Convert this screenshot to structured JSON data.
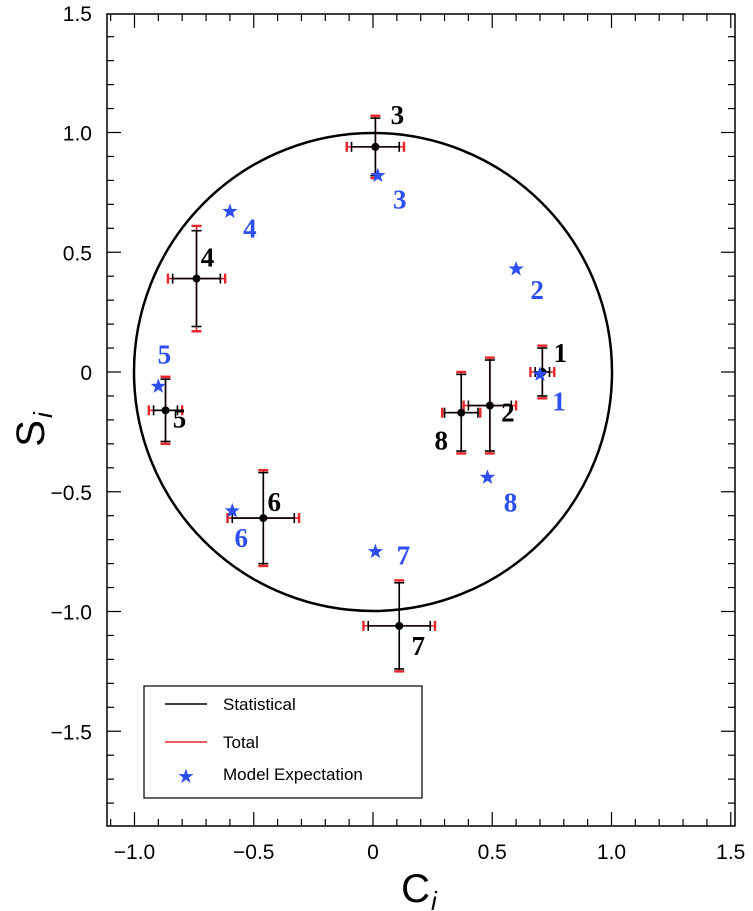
{
  "chart_data": {
    "type": "scatter",
    "xlabel": "C",
    "xlabel_sub": "i",
    "ylabel": "S",
    "ylabel_sub": "i",
    "xlim": [
      -1.1,
      1.55
    ],
    "ylim": [
      -1.9,
      1.5
    ],
    "x_ticks": [
      -1.0,
      -0.5,
      0,
      0.5,
      1.0,
      1.5
    ],
    "x_tick_labels": [
      "−1.0",
      "−0.5",
      "0",
      "0.5",
      "1.0",
      "1.5"
    ],
    "y_ticks": [
      -1.5,
      -1.0,
      -0.5,
      0,
      0.5,
      1.0,
      1.5
    ],
    "y_tick_labels": [
      "−1.5",
      "−1.0",
      "−0.5",
      "0",
      "0.5",
      "1.0",
      "1.5"
    ],
    "unit_circle": true,
    "grid": false,
    "legend": {
      "position": "bottom-left",
      "entries": [
        {
          "label": "Statistical",
          "color": "#000000",
          "marker": "line"
        },
        {
          "label": "Total",
          "color": "#e8262a",
          "marker": "line"
        },
        {
          "label": "Model Expectation",
          "color": "#2d4ef0",
          "marker": "star"
        }
      ]
    },
    "measurements": [
      {
        "label": "1",
        "c": 0.71,
        "s": 0.0,
        "c_stat": 0.03,
        "c_tot": 0.05,
        "s_stat": 0.1,
        "s_tot": 0.11
      },
      {
        "label": "2",
        "c": 0.49,
        "s": -0.14,
        "c_stat": 0.09,
        "c_tot": 0.11,
        "s_stat": 0.19,
        "s_tot": 0.2
      },
      {
        "label": "3",
        "c": 0.01,
        "s": 0.94,
        "c_stat": 0.1,
        "c_tot": 0.12,
        "s_stat": 0.12,
        "s_tot": 0.13
      },
      {
        "label": "4",
        "c": -0.74,
        "s": 0.39,
        "c_stat": 0.1,
        "c_tot": 0.12,
        "s_stat": 0.2,
        "s_tot": 0.22
      },
      {
        "label": "5",
        "c": -0.87,
        "s": -0.16,
        "c_stat": 0.05,
        "c_tot": 0.07,
        "s_stat": 0.13,
        "s_tot": 0.14
      },
      {
        "label": "6",
        "c": -0.46,
        "s": -0.61,
        "c_stat": 0.13,
        "c_tot": 0.15,
        "s_stat": 0.19,
        "s_tot": 0.2
      },
      {
        "label": "7",
        "c": 0.11,
        "s": -1.06,
        "c_stat": 0.13,
        "c_tot": 0.15,
        "s_stat": 0.18,
        "s_tot": 0.19
      },
      {
        "label": "8",
        "c": 0.37,
        "s": -0.17,
        "c_stat": 0.07,
        "c_tot": 0.08,
        "s_stat": 0.16,
        "s_tot": 0.17
      }
    ],
    "model_expectation": [
      {
        "label": "1",
        "c": 0.7,
        "s": -0.01
      },
      {
        "label": "2",
        "c": 0.6,
        "s": 0.43
      },
      {
        "label": "3",
        "c": 0.02,
        "s": 0.82
      },
      {
        "label": "4",
        "c": -0.6,
        "s": 0.67
      },
      {
        "label": "5",
        "c": -0.9,
        "s": -0.06
      },
      {
        "label": "6",
        "c": -0.59,
        "s": -0.58
      },
      {
        "label": "7",
        "c": 0.01,
        "s": -0.75
      },
      {
        "label": "8",
        "c": 0.48,
        "s": -0.44
      }
    ]
  },
  "colors": {
    "statistical": "#000000",
    "total": "#e8262a",
    "model": "#2d4ef0"
  }
}
